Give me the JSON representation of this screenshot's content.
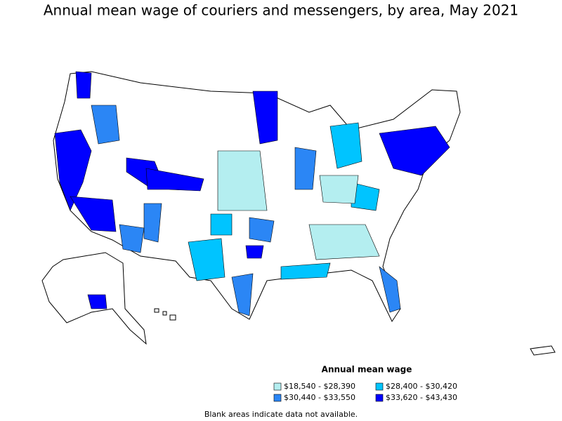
{
  "title": "Annual mean wage of couriers and messengers, by area, May 2021",
  "legend": {
    "title": "Annual mean wage",
    "items": [
      {
        "label": "$18,540 - $28,390",
        "color": "#b4eef0"
      },
      {
        "label": "$28,400 - $30,420",
        "color": "#00c4ff"
      },
      {
        "label": "$30,440 - $33,550",
        "color": "#2b86f5"
      },
      {
        "label": "$33,620 - $43,430",
        "color": "#0000ff"
      }
    ]
  },
  "note": "Blank areas indicate data not available."
}
